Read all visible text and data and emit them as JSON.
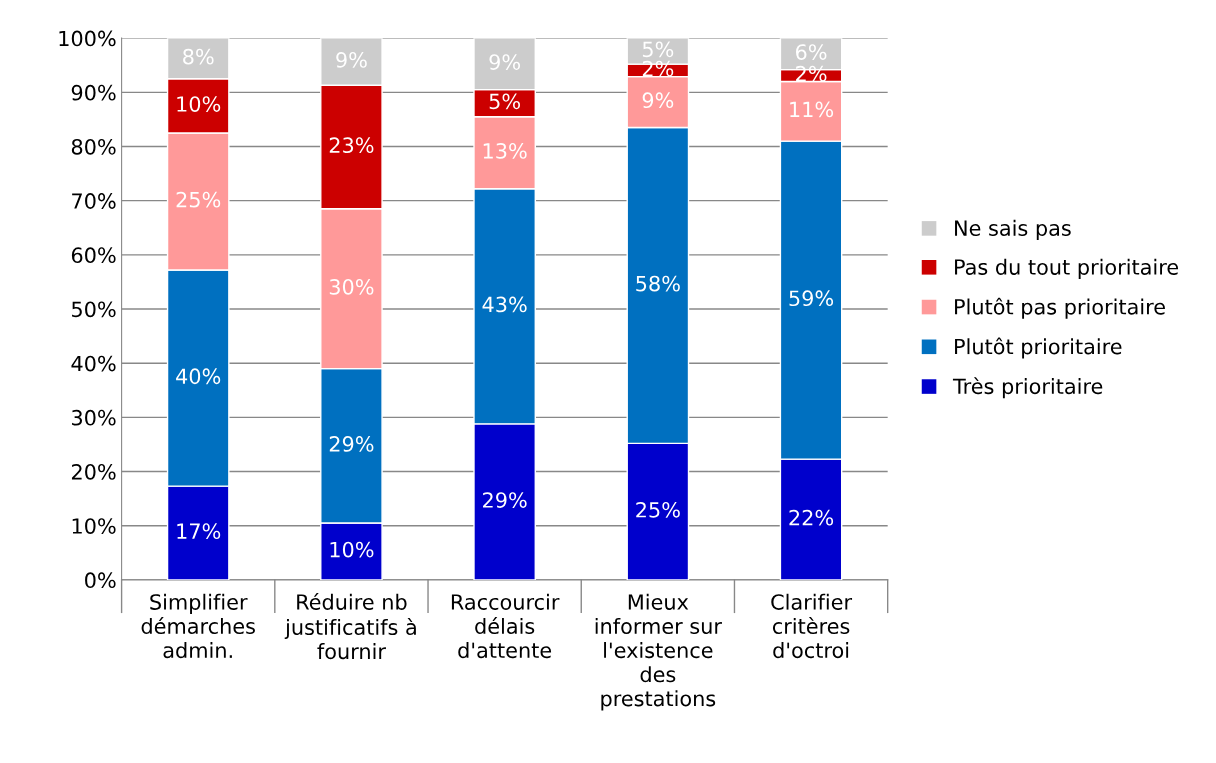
{
  "chart_data": {
    "type": "bar",
    "stacked": true,
    "categories": [
      "Simplifier\ndémarches\nadmin.",
      "Réduire nb\njustificatifs à\nfournir",
      "Raccourcir\ndélais\nd'attente",
      "Mieux\ninformer sur\nl'existence\ndes\nprestations",
      "Clarifier\ncritères\nd'octroi"
    ],
    "series": [
      {
        "name": "Très prioritaire",
        "color": "#0000cc",
        "values": [
          17.3,
          10.5,
          28.8,
          25.2,
          22.3
        ],
        "value_labels": [
          "17%",
          "10%",
          "29%",
          "25%",
          "22%"
        ]
      },
      {
        "name": "Plutôt prioritaire",
        "color": "#0070c0",
        "values": [
          39.9,
          28.5,
          43.4,
          58.3,
          58.7
        ],
        "value_labels": [
          "40%",
          "29%",
          "43%",
          "58%",
          "59%"
        ]
      },
      {
        "name": "Plutôt pas prioritaire",
        "color": "#ff9999",
        "values": [
          25.3,
          29.5,
          13.3,
          9.4,
          11.0
        ],
        "value_labels": [
          "25%",
          "30%",
          "13%",
          "9%",
          "11%"
        ]
      },
      {
        "name": "Pas du tout prioritaire",
        "color": "#cc0000",
        "values": [
          10.0,
          22.8,
          5.0,
          2.3,
          2.2
        ],
        "value_labels": [
          "10%",
          "23%",
          "5%",
          "2%",
          "2%"
        ]
      },
      {
        "name": "Ne sais pas",
        "color": "#cccccc",
        "values": [
          7.5,
          8.7,
          9.5,
          4.8,
          5.8
        ],
        "value_labels": [
          "8%",
          "9%",
          "9%",
          "5%",
          "6%"
        ]
      }
    ],
    "ylim": [
      0,
      100
    ],
    "yticks": [
      {
        "value": 0,
        "label": "0%"
      },
      {
        "value": 10,
        "label": "10%"
      },
      {
        "value": 20,
        "label": "20%"
      },
      {
        "value": 30,
        "label": "30%"
      },
      {
        "value": 40,
        "label": "40%"
      },
      {
        "value": 50,
        "label": "50%"
      },
      {
        "value": 60,
        "label": "60%"
      },
      {
        "value": 70,
        "label": "70%"
      },
      {
        "value": 80,
        "label": "80%"
      },
      {
        "value": 90,
        "label": "90%"
      },
      {
        "value": 100,
        "label": "100%"
      }
    ],
    "grid": "y",
    "legend": "right"
  }
}
